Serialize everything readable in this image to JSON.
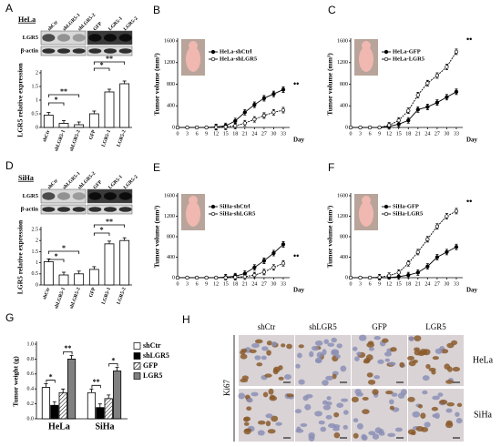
{
  "chart_data": [
    {
      "type": "bar",
      "label": "A",
      "ylabel": "LGR5 relative expression",
      "categories": [
        "shCtr",
        "shLGR5-1",
        "shLGR5-2",
        "GFP",
        "LGR5-1",
        "LGR5-2"
      ],
      "values": [
        0.45,
        0.15,
        0.1,
        0.5,
        1.3,
        1.6
      ],
      "color": "#ffffff",
      "ylim": [
        0,
        2
      ],
      "yticks": [
        0,
        0.5,
        1,
        1.5,
        2
      ],
      "annotations": [
        "*",
        "**",
        "*",
        "**"
      ]
    },
    {
      "type": "line",
      "label": "B",
      "xlabel": "Day",
      "ylabel": "Tumor volume (mm³)",
      "x": [
        0,
        3,
        6,
        9,
        12,
        15,
        18,
        21,
        24,
        27,
        30,
        33
      ],
      "xlim": [
        0,
        35
      ],
      "xticks": [
        0,
        3,
        6,
        9,
        12,
        15,
        18,
        21,
        24,
        27,
        30,
        33
      ],
      "ylim": [
        0,
        1600
      ],
      "yticks": [
        0,
        400,
        800,
        1200,
        1600
      ],
      "series": [
        {
          "name": "HeLa-shCtrl",
          "color": "#000000",
          "marker": "filled",
          "values": [
            0,
            0,
            0,
            0,
            10,
            30,
            120,
            280,
            420,
            540,
            620,
            700
          ]
        },
        {
          "name": "HeLa-shLGR5",
          "color": "#000000",
          "marker": "open",
          "values": [
            0,
            0,
            0,
            0,
            5,
            10,
            30,
            80,
            150,
            220,
            280,
            320
          ]
        }
      ],
      "annotations": [
        "••"
      ]
    },
    {
      "type": "line",
      "label": "C",
      "xlabel": "Day",
      "ylabel": "Tumor volume (mm³)",
      "x": [
        0,
        3,
        6,
        9,
        12,
        15,
        18,
        21,
        24,
        27,
        30,
        33
      ],
      "xlim": [
        0,
        35
      ],
      "xticks": [
        0,
        3,
        6,
        9,
        12,
        15,
        18,
        21,
        24,
        27,
        30,
        33
      ],
      "ylim": [
        0,
        1600
      ],
      "yticks": [
        0,
        400,
        800,
        1200,
        1600
      ],
      "series": [
        {
          "name": "HeLa-GFP",
          "color": "#000000",
          "marker": "filled",
          "values": [
            0,
            0,
            0,
            0,
            20,
            60,
            130,
            330,
            380,
            460,
            560,
            660
          ]
        },
        {
          "name": "HeLa-LGR5",
          "color": "#000000",
          "marker": "open",
          "values": [
            0,
            0,
            0,
            0,
            40,
            130,
            310,
            600,
            820,
            960,
            1120,
            1400
          ]
        }
      ],
      "annotations": [
        "••"
      ]
    },
    {
      "type": "bar",
      "label": "D",
      "ylabel": "LGR5 relative expression",
      "categories": [
        "shCtr",
        "shLGR5-1",
        "shLGR5-2",
        "GFP",
        "LGR5-1",
        "LGR5-2"
      ],
      "values": [
        1.05,
        0.45,
        0.5,
        0.7,
        1.85,
        2.0
      ],
      "color": "#ffffff",
      "ylim": [
        0,
        2.5
      ],
      "yticks": [
        0,
        0.5,
        1,
        1.5,
        2,
        2.5
      ],
      "annotations": [
        "*",
        "*",
        "*",
        "**"
      ]
    },
    {
      "type": "line",
      "label": "E",
      "xlabel": "Day",
      "ylabel": "Tumor volume (mm³)",
      "x": [
        0,
        3,
        6,
        9,
        12,
        15,
        18,
        21,
        24,
        27,
        30,
        33
      ],
      "xlim": [
        0,
        35
      ],
      "xticks": [
        0,
        3,
        6,
        9,
        12,
        15,
        18,
        21,
        24,
        27,
        30,
        33
      ],
      "ylim": [
        0,
        1600
      ],
      "yticks": [
        0,
        400,
        800,
        1200,
        1600
      ],
      "series": [
        {
          "name": "SiHa-shCtrl",
          "color": "#000000",
          "marker": "filled",
          "values": [
            0,
            0,
            0,
            0,
            0,
            10,
            30,
            80,
            200,
            330,
            480,
            650
          ]
        },
        {
          "name": "SiHa-shLGR5",
          "color": "#000000",
          "marker": "open",
          "values": [
            0,
            0,
            0,
            0,
            0,
            0,
            10,
            20,
            50,
            110,
            200,
            280
          ]
        }
      ],
      "annotations": [
        "••"
      ]
    },
    {
      "type": "line",
      "label": "F",
      "xlabel": "Day",
      "ylabel": "Tumor volume (mm³)",
      "x": [
        0,
        3,
        6,
        9,
        12,
        15,
        18,
        21,
        24,
        27,
        30,
        33
      ],
      "xlim": [
        0,
        35
      ],
      "xticks": [
        0,
        3,
        6,
        9,
        12,
        15,
        18,
        21,
        24,
        27,
        30,
        33
      ],
      "ylim": [
        0,
        1600
      ],
      "yticks": [
        0,
        400,
        800,
        1200,
        1600
      ],
      "series": [
        {
          "name": "SiHa-GFP",
          "color": "#000000",
          "marker": "filled",
          "values": [
            0,
            0,
            0,
            0,
            0,
            20,
            50,
            100,
            220,
            400,
            500,
            600
          ]
        },
        {
          "name": "SiHa-LGR5",
          "color": "#000000",
          "marker": "open",
          "values": [
            0,
            0,
            0,
            10,
            40,
            100,
            280,
            500,
            750,
            1000,
            1200,
            1300
          ]
        }
      ],
      "annotations": [
        "••"
      ]
    },
    {
      "type": "grouped-bar",
      "label": "G",
      "ylabel": "Tumor weight (g)",
      "categories": [
        "HeLa",
        "SiHa"
      ],
      "series": [
        {
          "name": "shCtr",
          "color": "#ffffff",
          "values": [
            0.42,
            0.35
          ]
        },
        {
          "name": "shLGR5",
          "color": "#000000",
          "values": [
            0.18,
            0.15
          ]
        },
        {
          "name": "GFP",
          "color": "#ffffff",
          "pattern": "diagonal",
          "values": [
            0.35,
            0.27
          ]
        },
        {
          "name": "LGR5",
          "color": "#808080",
          "values": [
            0.8,
            0.64
          ]
        }
      ],
      "ylim": [
        0,
        1.0
      ],
      "yticks": [
        {
          "value": 0,
          "label": "0.0"
        },
        {
          "value": 0.2,
          "label": "0.2"
        },
        {
          "value": 0.4,
          "label": "0.4"
        },
        {
          "value": 0.6,
          "label": "0.6"
        },
        {
          "value": 0.8,
          "label": "0.8"
        },
        {
          "value": 1.0,
          "label": "1.0"
        }
      ],
      "annotations": [
        "*",
        "**",
        "**",
        "*"
      ]
    }
  ],
  "blots": [
    {
      "cell": "HeLa",
      "rows": [
        "LGR5",
        "β-actin"
      ]
    },
    {
      "cell": "SiHa",
      "rows": [
        "LGR5",
        "β-actin"
      ]
    }
  ],
  "ihc": {
    "label": "H",
    "columns": [
      "shCtr",
      "shLGR5",
      "GFP",
      "LGR5"
    ],
    "stain": "Ki67",
    "rows": [
      "HeLa",
      "SiHa"
    ]
  }
}
